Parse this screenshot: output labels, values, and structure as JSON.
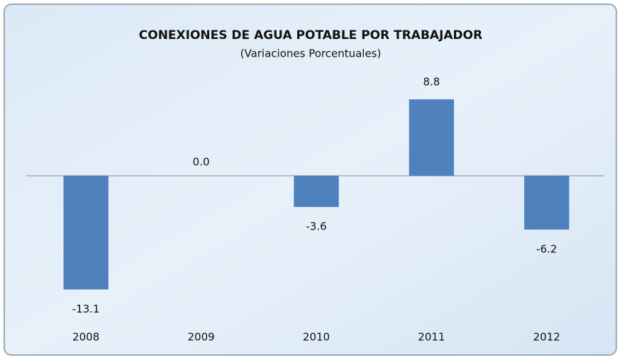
{
  "chart_data": {
    "type": "bar",
    "title": "CONEXIONES DE AGUA POTABLE POR TRABAJADOR",
    "subtitle": "(Variaciones Porcentuales)",
    "categories": [
      "2008",
      "2009",
      "2010",
      "2011",
      "2012"
    ],
    "values": [
      -13.1,
      0.0,
      -3.6,
      8.8,
      -6.2
    ],
    "value_labels": [
      "-13.1",
      "0.0",
      "-3.6",
      "8.8",
      "-6.2"
    ],
    "color": "#4f81bd",
    "grid": false
  }
}
